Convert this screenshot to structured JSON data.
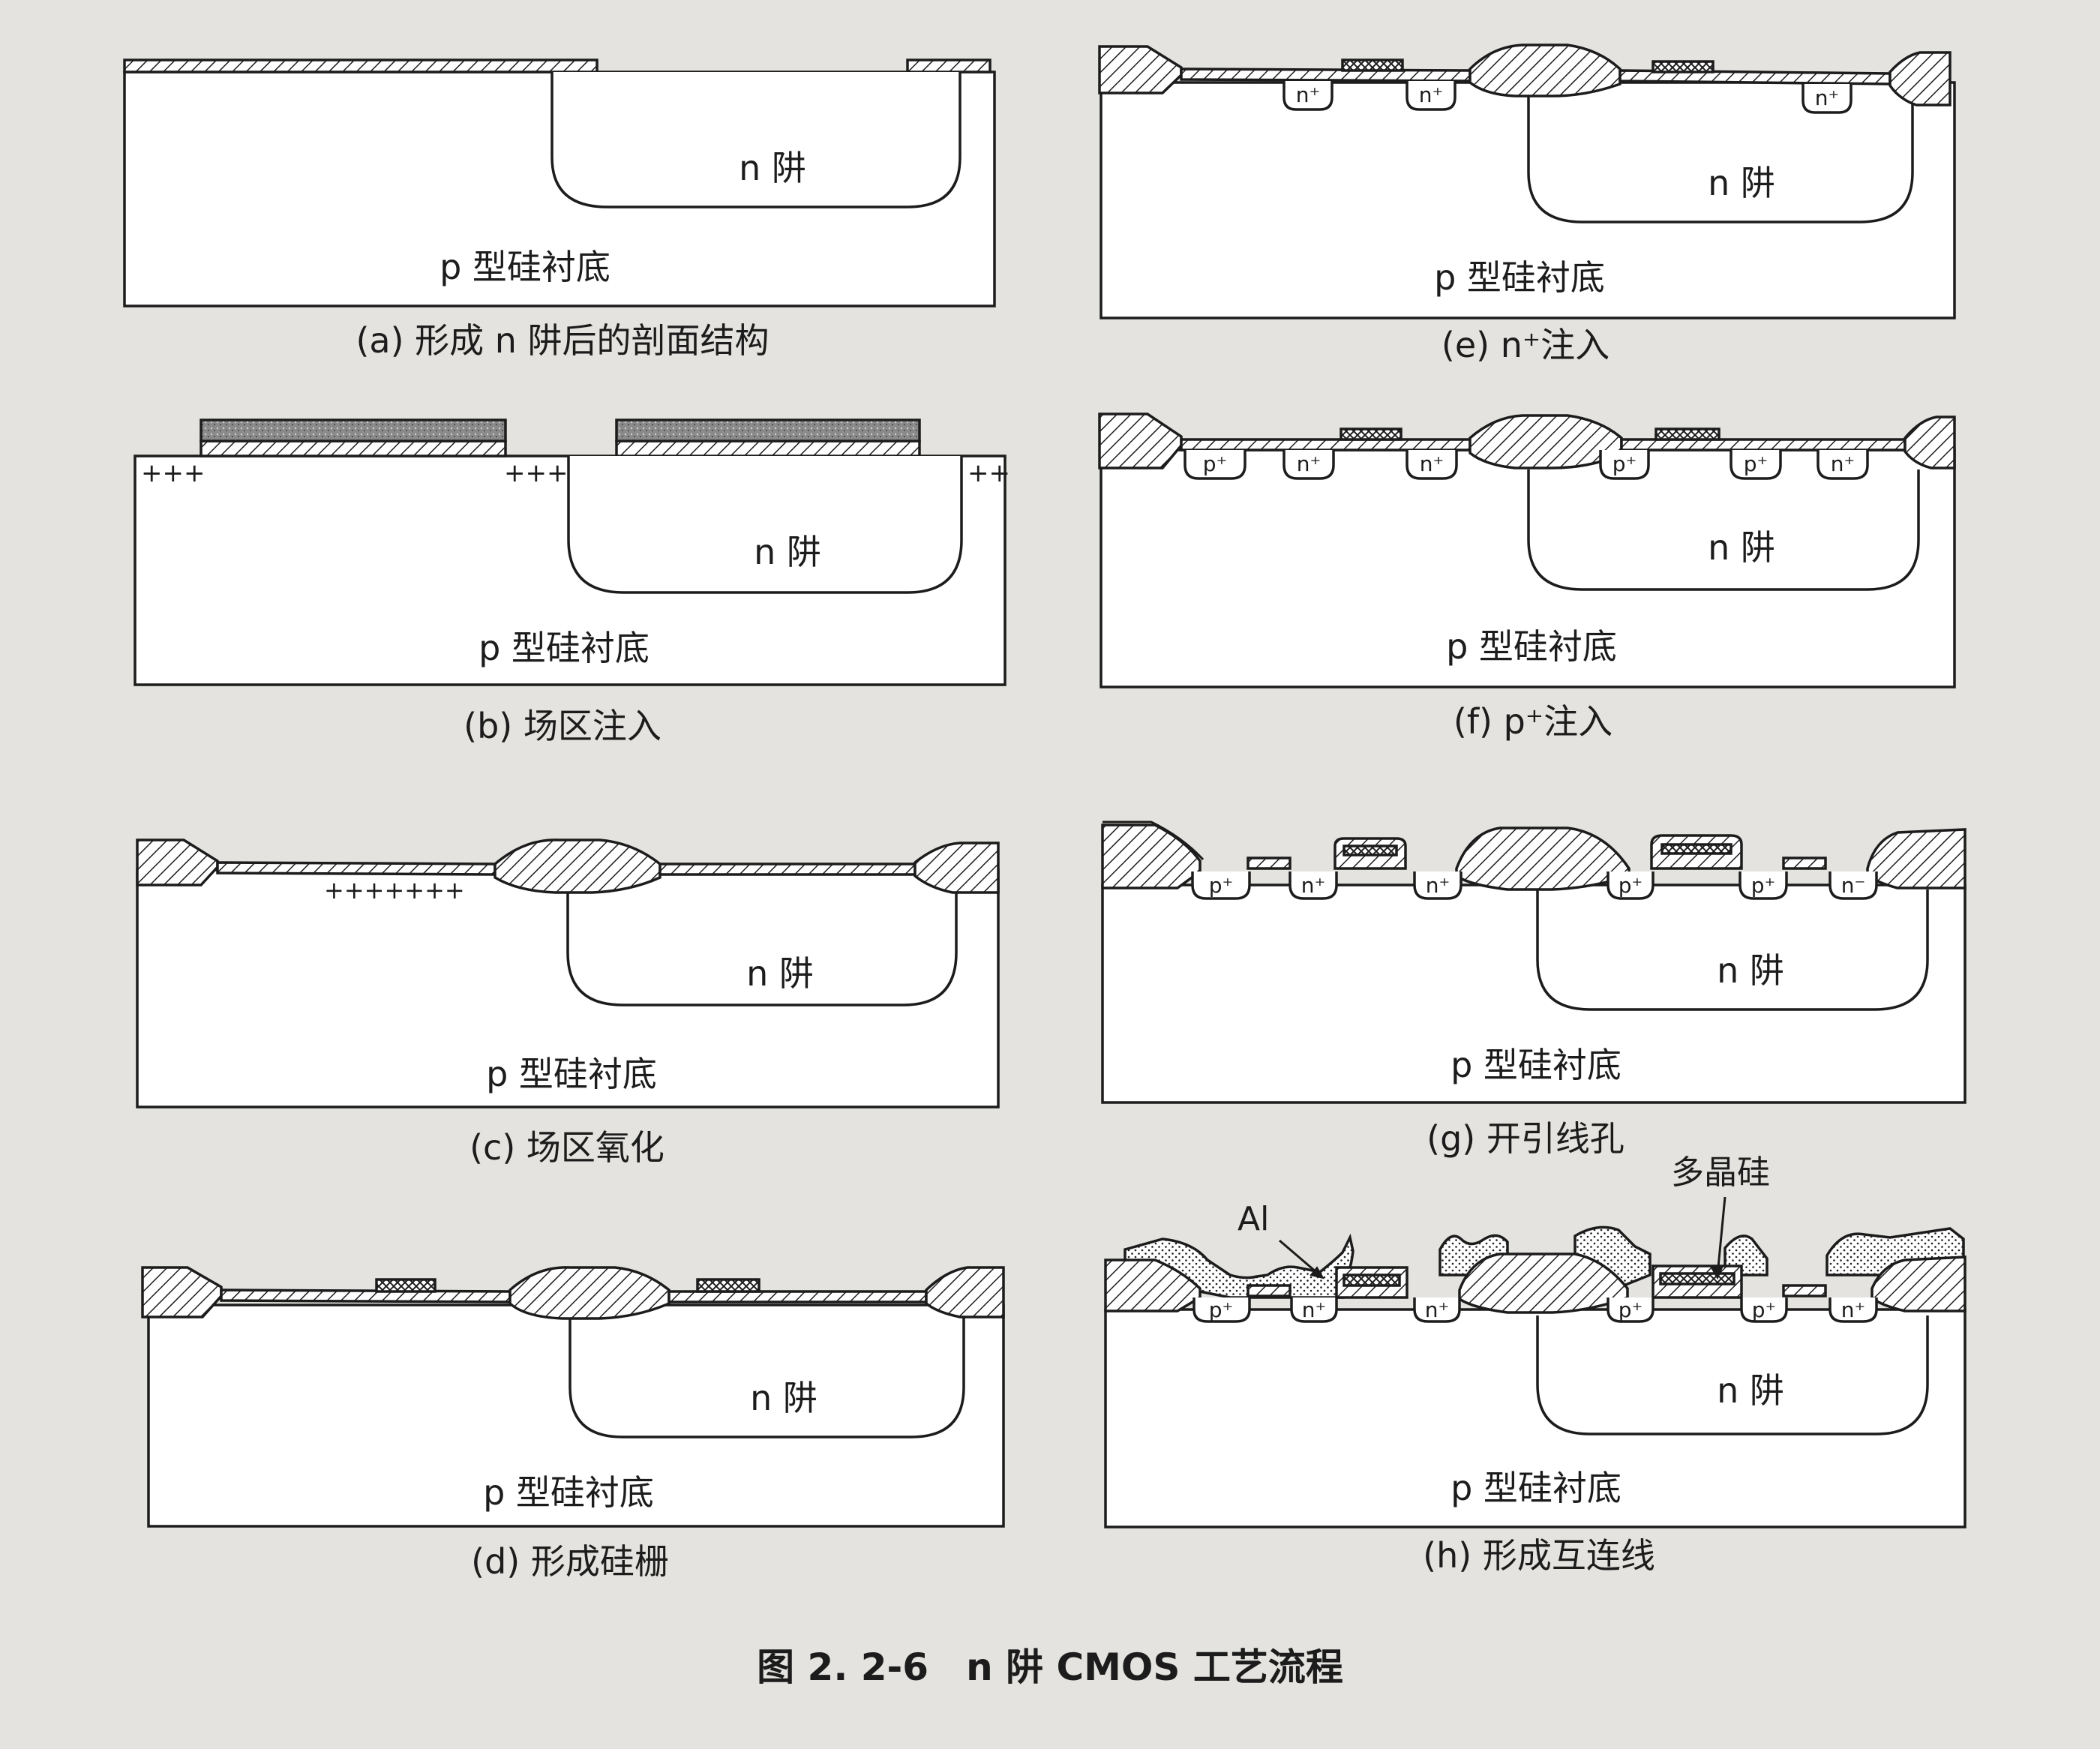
{
  "panels": {
    "a": {
      "caption": "(a) 形成 n 阱后的剖面结构",
      "substrate": "p 型硅衬底",
      "well": "n 阱"
    },
    "b": {
      "caption": "(b) 场区注入",
      "substrate": "p 型硅衬底",
      "well": "n 阱",
      "implant_marks": [
        "+++",
        "+++",
        "++"
      ]
    },
    "c": {
      "caption": "(c) 场区氧化",
      "substrate": "p 型硅衬底",
      "well": "n 阱",
      "implant_marks": [
        "+++++++"
      ]
    },
    "d": {
      "caption": "(d) 形成硅栅",
      "substrate": "p 型硅衬底",
      "well": "n 阱"
    },
    "e": {
      "caption": "(e) n⁺注入",
      "substrate": "p 型硅衬底",
      "well": "n 阱",
      "regions": [
        "n⁺",
        "n⁺",
        "n⁺"
      ]
    },
    "f": {
      "caption": "(f) p⁺注入",
      "substrate": "p 型硅衬底",
      "well": "n 阱",
      "regions": [
        "p⁺",
        "n⁺",
        "n⁺",
        "p⁺",
        "p⁺",
        "n⁺"
      ]
    },
    "g": {
      "caption": "(g) 开引线孔",
      "substrate": "p 型硅衬底",
      "well": "n 阱",
      "regions": [
        "p⁺",
        "n⁺",
        "n⁺",
        "p⁺",
        "p⁺",
        "n⁻"
      ]
    },
    "h": {
      "caption": "(h) 形成互连线",
      "substrate": "p 型硅衬底",
      "well": "n 阱",
      "regions": [
        "p⁺",
        "n⁺",
        "n⁺",
        "p⁺",
        "p⁺",
        "n⁺"
      ],
      "label_al": "Al",
      "label_poly": "多晶硅"
    }
  },
  "figure_caption": "图 2. 2-6　n 阱 CMOS 工艺流程",
  "colors": {
    "ink": "#1c1c1c",
    "paper": "#ffffff",
    "background": "#e4e3df",
    "gate_fill": "#8a8a8a"
  }
}
